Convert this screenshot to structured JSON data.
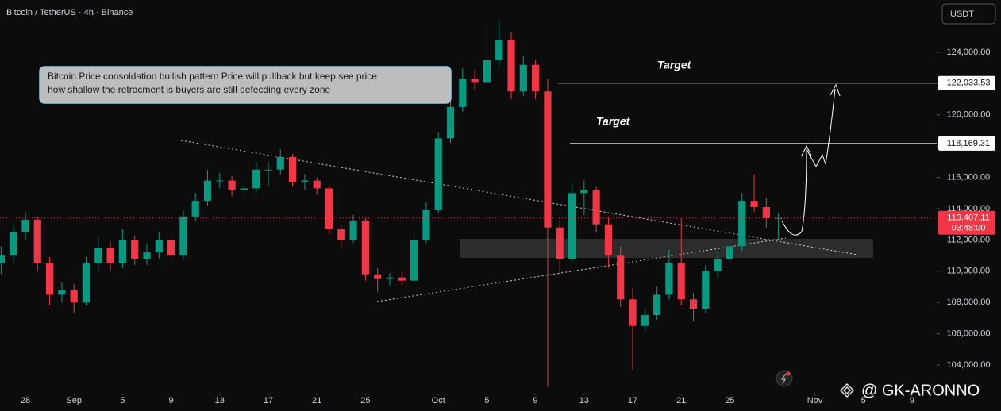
{
  "chart_data": {
    "type": "candlestick",
    "title": "Bitcoin / TetherUS · 4h · Binance",
    "currency_button": "USDT",
    "up_color": "#089981",
    "down_color": "#f23645",
    "xlim": [
      -2.09,
      75.03
    ],
    "ylim": [
      102480,
      127350
    ],
    "xticks": [
      {
        "value": 0,
        "label": "28"
      },
      {
        "value": 4,
        "label": "Sep"
      },
      {
        "value": 8,
        "label": "5"
      },
      {
        "value": 12,
        "label": "9"
      },
      {
        "value": 16,
        "label": "13"
      },
      {
        "value": 20,
        "label": "17"
      },
      {
        "value": 24,
        "label": "21"
      },
      {
        "value": 28,
        "label": "25"
      },
      {
        "value": 34,
        "label": "Oct"
      },
      {
        "value": 38,
        "label": "5"
      },
      {
        "value": 42,
        "label": "9"
      },
      {
        "value": 46,
        "label": "13"
      },
      {
        "value": 50,
        "label": "17"
      },
      {
        "value": 54,
        "label": "21"
      },
      {
        "value": 58,
        "label": "25"
      },
      {
        "value": 65,
        "label": "Nov"
      },
      {
        "value": 69,
        "label": "5"
      },
      {
        "value": 73,
        "label": "9"
      }
    ],
    "yticks": [
      {
        "value": 104000,
        "label": "104,000.00"
      },
      {
        "value": 106000,
        "label": "106,000.00"
      },
      {
        "value": 108000,
        "label": "108,000.00"
      },
      {
        "value": 110000,
        "label": "110,000.00"
      },
      {
        "value": 112000,
        "label": "112,000.00"
      },
      {
        "value": 114000,
        "label": "114,000.00"
      },
      {
        "value": 116000,
        "label": "116,000.00"
      },
      {
        "value": 118000,
        "label": "118,000.00"
      },
      {
        "value": 120000,
        "label": "120,000.00"
      },
      {
        "value": 122000,
        "label": "122,000.00"
      },
      {
        "value": 124000,
        "label": "124,000.00"
      }
    ],
    "x": [
      -2,
      -1,
      0,
      1,
      2,
      3,
      4,
      5,
      6,
      7,
      8,
      9,
      10,
      11,
      12,
      13,
      14,
      15,
      16,
      17,
      18,
      19,
      20,
      21,
      22,
      23,
      24,
      25,
      26,
      27,
      28,
      29,
      30,
      31,
      32,
      33,
      34,
      35,
      36,
      37,
      38,
      39,
      40,
      41,
      42,
      43,
      44,
      45,
      46,
      47,
      48,
      49,
      50,
      51,
      52,
      53,
      54,
      55,
      56,
      57,
      58,
      59,
      60,
      61,
      62
    ],
    "open": [
      110500,
      111000,
      112500,
      113300,
      110500,
      108500,
      108800,
      108000,
      110500,
      111500,
      110500,
      112000,
      110800,
      111200,
      112000,
      111000,
      113500,
      114500,
      115800,
      115800,
      115200,
      115300,
      116500,
      116500,
      117300,
      115700,
      115800,
      115300,
      112700,
      112000,
      113200,
      109800,
      109500,
      109600,
      109400,
      112000,
      113900,
      118500,
      120500,
      122300,
      122100,
      123500,
      124800,
      121500,
      123200,
      121500,
      112800,
      110800,
      115000,
      115200,
      113000,
      111000,
      108200,
      106500,
      107200,
      108500,
      110500,
      108200,
      107600,
      110000,
      110800,
      111600,
      114500,
      114100,
      113400
    ],
    "high": [
      111600,
      113000,
      113800,
      113500,
      110900,
      109300,
      109200,
      110900,
      112200,
      111900,
      112700,
      112300,
      111800,
      112500,
      112300,
      113900,
      115000,
      116500,
      116300,
      116100,
      115900,
      117000,
      117000,
      117800,
      117500,
      116200,
      116000,
      115500,
      113000,
      113600,
      113400,
      110200,
      109900,
      110000,
      112500,
      114400,
      118900,
      120900,
      123000,
      122900,
      125800,
      126100,
      125300,
      123800,
      123500,
      122300,
      113200,
      115700,
      115800,
      115400,
      113500,
      111600,
      108900,
      107600,
      109000,
      111400,
      113400,
      108600,
      110400,
      111200,
      112000,
      115000,
      116200,
      114700,
      113700
    ],
    "low": [
      109800,
      110600,
      112000,
      110000,
      107800,
      108000,
      107300,
      107800,
      110100,
      110000,
      110200,
      110400,
      110400,
      110800,
      110600,
      110800,
      113200,
      114200,
      115300,
      114800,
      114600,
      115000,
      115400,
      116200,
      115400,
      115200,
      114900,
      112300,
      111400,
      111800,
      109400,
      108700,
      109100,
      109100,
      109300,
      111800,
      113700,
      118200,
      120200,
      121600,
      121800,
      123100,
      121000,
      121200,
      121000,
      102600,
      109800,
      110500,
      113600,
      112500,
      110200,
      107700,
      103700,
      106100,
      106900,
      108200,
      107800,
      106800,
      107300,
      109600,
      110500,
      111300,
      113800,
      112800,
      112000
    ],
    "close": [
      111000,
      112500,
      113300,
      110500,
      108500,
      108800,
      108000,
      110500,
      111500,
      110500,
      112000,
      110800,
      111200,
      112000,
      111000,
      113500,
      114500,
      115800,
      115800,
      115200,
      115300,
      116500,
      116500,
      117300,
      115700,
      115800,
      115300,
      112700,
      112000,
      113200,
      109800,
      109500,
      109600,
      109400,
      112000,
      113900,
      118500,
      120500,
      122300,
      122100,
      123500,
      124800,
      121500,
      123200,
      121500,
      112800,
      110800,
      115000,
      115200,
      113000,
      111000,
      108200,
      106500,
      107200,
      108500,
      110500,
      108200,
      107600,
      110000,
      110800,
      111600,
      114500,
      114100,
      113400,
      113407.11
    ],
    "targets": [
      {
        "text": "Target",
        "value": 122033.53,
        "label": "122,033.53"
      },
      {
        "text": "Target",
        "value": 118169.31,
        "label": "118,169.31"
      }
    ],
    "last_price": {
      "value": 113407.11,
      "label": "113,407.11",
      "countdown": "03:48:00"
    },
    "annotation": [
      "Bitcoin Price consoldation bullish pattern Price will pullback but keep see price",
      " how shallow the retracment is buyers are still defecding every zone"
    ],
    "watermark": "@ GK-ARONNO"
  }
}
